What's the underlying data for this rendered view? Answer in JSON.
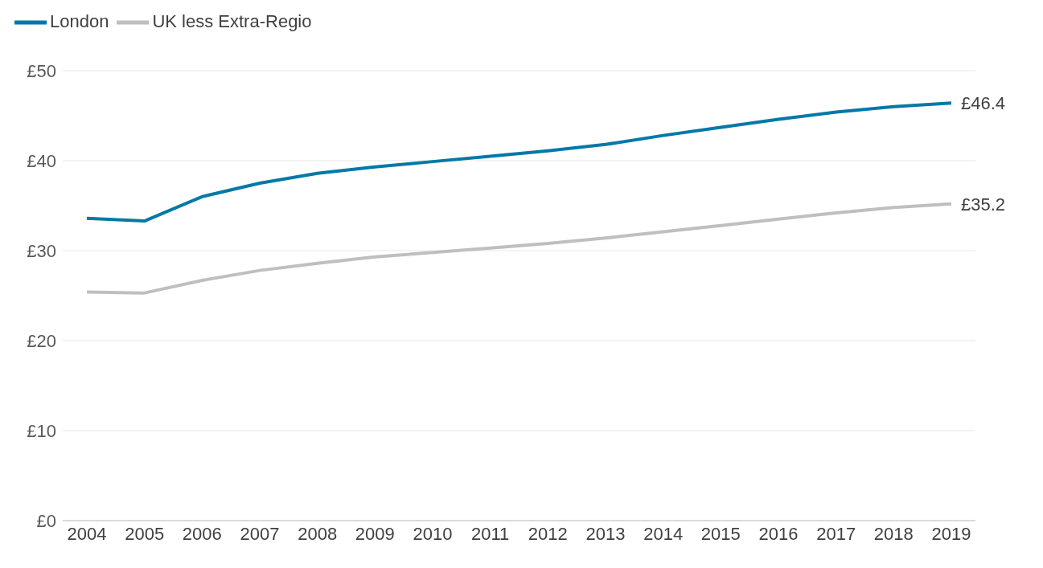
{
  "chart_data": {
    "type": "line",
    "categories": [
      "2004",
      "2005",
      "2006",
      "2007",
      "2008",
      "2009",
      "2010",
      "2011",
      "2012",
      "2013",
      "2014",
      "2015",
      "2016",
      "2017",
      "2018",
      "2019"
    ],
    "series": [
      {
        "name": "London",
        "color": "#0079a8",
        "values": [
          33.6,
          33.3,
          36.0,
          37.5,
          38.6,
          39.3,
          39.9,
          40.5,
          41.1,
          41.8,
          42.8,
          43.7,
          44.6,
          45.4,
          46.0,
          46.4
        ],
        "value_labels": [
          null,
          null,
          null,
          null,
          null,
          null,
          null,
          null,
          null,
          null,
          null,
          null,
          null,
          null,
          null,
          "£46.4"
        ]
      },
      {
        "name": "UK less Extra-Regio",
        "color": "#bfbfbf",
        "values": [
          25.4,
          25.3,
          26.7,
          27.8,
          28.6,
          29.3,
          29.8,
          30.3,
          30.8,
          31.4,
          32.1,
          32.8,
          33.5,
          34.2,
          34.8,
          35.2
        ],
        "value_labels": [
          null,
          null,
          null,
          null,
          null,
          null,
          null,
          null,
          null,
          null,
          null,
          null,
          null,
          null,
          null,
          "£35.2"
        ]
      }
    ],
    "ylim": [
      0,
      50
    ],
    "yticks": [
      {
        "value": 0,
        "label": "£0"
      },
      {
        "value": 10,
        "label": "£10"
      },
      {
        "value": 20,
        "label": "£20"
      },
      {
        "value": 30,
        "label": "£30"
      },
      {
        "value": 40,
        "label": "£40"
      },
      {
        "value": 50,
        "label": "£50"
      }
    ],
    "grid": "y",
    "legend": "top left",
    "marker": "none",
    "line_style": "solid"
  }
}
